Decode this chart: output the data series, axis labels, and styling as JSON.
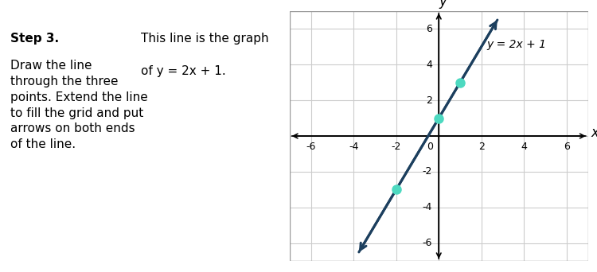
{
  "step_bold": "Step 3.",
  "step_body": "Draw the line\nthrough the three\npoints. Extend the line\nto fill the grid and put\narrows on both ends\nof the line.",
  "description_line1": "This line is the graph",
  "description_line2": "of y = 2x + 1.",
  "equation_label": "y = 2x + 1",
  "points": [
    [
      0,
      1
    ],
    [
      1,
      3
    ],
    [
      -2,
      -3
    ]
  ],
  "point_color": "#4DD9C0",
  "line_color": "#1C3F5E",
  "line_width": 2.2,
  "grid_color": "#CCCCCC",
  "xlim": [
    -7,
    7
  ],
  "ylim": [
    -7,
    7
  ],
  "xticks": [
    -6,
    -4,
    -2,
    0,
    2,
    4,
    6
  ],
  "yticks": [
    -6,
    -4,
    -2,
    0,
    2,
    4,
    6
  ],
  "step_bg_color": "#B0C4D8",
  "desc_bg_color": "#FFFFFF",
  "fig_bg_color": "#FFFFFF",
  "font_size_step": 11,
  "font_size_desc": 11,
  "font_size_eq": 10,
  "font_size_tick": 9,
  "font_size_axlabel": 12
}
